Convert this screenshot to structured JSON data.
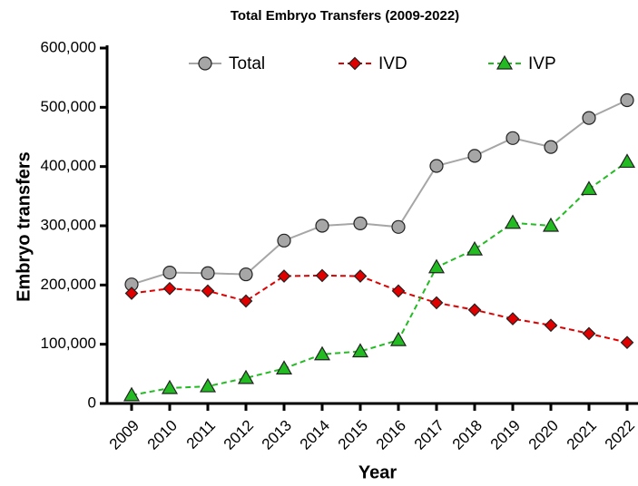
{
  "chart_data": {
    "type": "line",
    "title": "Total Embryo Transfers (2009-2022)",
    "x_label": "Year",
    "y_label": "Embryo transfers",
    "categories": [
      "2009",
      "2010",
      "2011",
      "2012",
      "2013",
      "2014",
      "2015",
      "2016",
      "2017",
      "2018",
      "2019",
      "2020",
      "2021",
      "2022"
    ],
    "series": [
      {
        "name": "Total",
        "color": "#a6a6a6",
        "marker": "circle",
        "dashed": false,
        "values": [
          201000,
          221000,
          220000,
          218000,
          275000,
          300000,
          304000,
          298000,
          401000,
          418000,
          448000,
          433000,
          482000,
          512000
        ]
      },
      {
        "name": "IVD",
        "color": "#e00000",
        "marker": "diamond",
        "dashed": true,
        "values": [
          186000,
          194000,
          190000,
          173000,
          215000,
          216000,
          215000,
          190000,
          170000,
          158000,
          143000,
          132000,
          118000,
          103000
        ]
      },
      {
        "name": "IVP",
        "color": "#22bb22",
        "marker": "triangle",
        "dashed": true,
        "values": [
          14000,
          26000,
          29000,
          43000,
          59000,
          83000,
          88000,
          107000,
          230000,
          260000,
          305000,
          300000,
          362000,
          408000
        ]
      }
    ],
    "ylim": [
      0,
      600000
    ],
    "yticks": [
      0,
      {
        "value": 100000,
        "label": "100,000"
      },
      {
        "value": 200000,
        "label": "200,000"
      },
      {
        "value": 300000,
        "label": "300,000"
      },
      {
        "value": 400000,
        "label": "400,000"
      },
      {
        "value": 500000,
        "label": "500,000"
      },
      {
        "value": 600000,
        "label": "600,000"
      }
    ],
    "legend": "top"
  }
}
